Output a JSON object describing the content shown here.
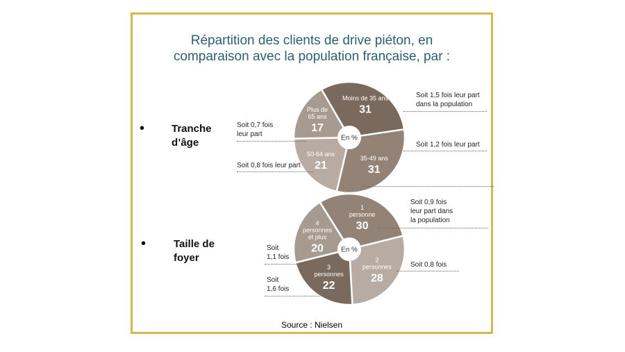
{
  "title_lines": [
    "Répartition des clients de drive piéton, en",
    "comparaison avec la population française, par :"
  ],
  "source": "Source : Nielsen",
  "rows": [
    {
      "bullet": "•",
      "label_lines": [
        "Tranche",
        "d’âge"
      ],
      "center_label": "En %",
      "notes": [
        {
          "lines": [
            "Soit 1,5 fois leur part",
            "dans la population"
          ]
        },
        {
          "lines": [
            "Soit 1,2 fois leur part"
          ]
        },
        {
          "lines": [
            "Soit 0,8 fois leur part"
          ]
        },
        {
          "lines": [
            "Soit 0,7 fois",
            "leur part"
          ]
        }
      ]
    },
    {
      "bullet": "•",
      "label_lines": [
        "Taille de",
        "foyer"
      ],
      "center_label": "En %",
      "notes": [
        {
          "lines": [
            "Soit 0,9 fois",
            "leur part dans",
            "la population"
          ]
        },
        {
          "lines": [
            "Soit 0,8 fois"
          ]
        },
        {
          "lines": [
            "Soit",
            "1,6 fois"
          ]
        },
        {
          "lines": [
            "Soit",
            "1,1 fois"
          ]
        }
      ]
    }
  ],
  "colors": {
    "frame": "#d9b84a",
    "title": "#2a5f74",
    "slice_dark": "#7a6a5e",
    "slice_mid": "#938276",
    "slice_light": "#b8aca2",
    "slice_lighter": "#a79a8e"
  },
  "chart_data": [
    {
      "type": "pie",
      "center_label": "En %",
      "categories": [
        "Moins de 35 ans",
        "35-49 ans",
        "50-64 ans",
        "Plus de 65 ans"
      ],
      "values": [
        31,
        31,
        21,
        17
      ],
      "slice_colors": [
        "#7a6a5e",
        "#938276",
        "#b8aca2",
        "#a79a8e"
      ],
      "annotations": [
        "Soit 1,5 fois leur part dans la population",
        "Soit 1,2 fois leur part",
        "Soit 0,8 fois leur part",
        "Soit 0,7 fois leur part"
      ]
    },
    {
      "type": "pie",
      "center_label": "En %",
      "categories": [
        "1 personne",
        "2 personnes",
        "3 personnes",
        "4 personnes et plus"
      ],
      "values": [
        30,
        28,
        22,
        20
      ],
      "slice_colors": [
        "#938276",
        "#b8aca2",
        "#7a6a5e",
        "#a79a8e"
      ],
      "annotations": [
        "Soit 0,9 fois leur part dans la population",
        "Soit 0,8 fois",
        "Soit 1,6 fois",
        "Soit 1,1 fois"
      ]
    }
  ],
  "pie_label_lines": [
    [
      [
        "Moins de 35 ans"
      ],
      [
        "35-49 ans"
      ],
      [
        "50-64 ans"
      ],
      [
        "Plus de",
        "65 ans"
      ]
    ],
    [
      [
        "1",
        "personne"
      ],
      [
        "2",
        "personnes"
      ],
      [
        "3",
        "personnes"
      ],
      [
        "4",
        "personnes",
        "et plus"
      ]
    ]
  ]
}
